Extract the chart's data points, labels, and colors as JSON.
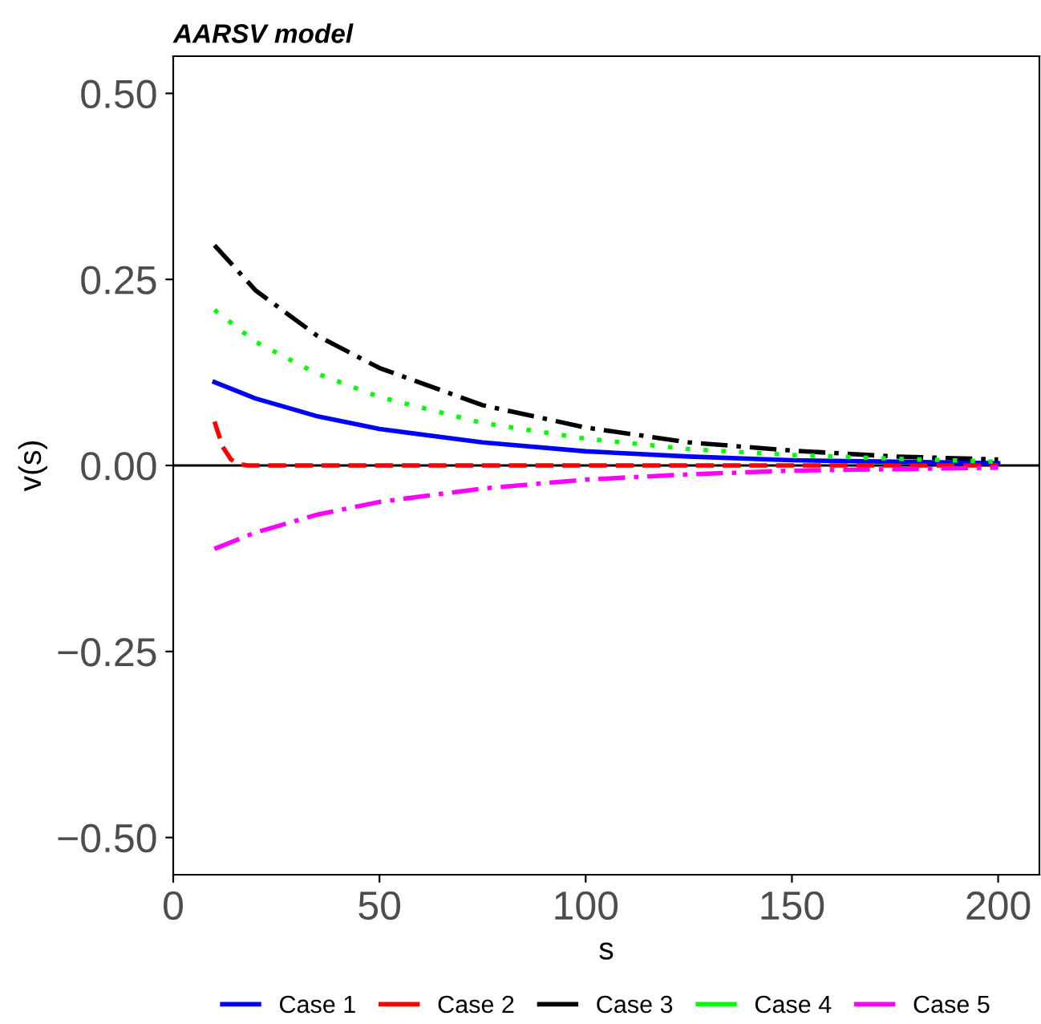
{
  "chart_data": {
    "type": "line",
    "title": "AARSV model",
    "xlabel": "s",
    "ylabel": "v(s)",
    "xlim": [
      0,
      210
    ],
    "xticks": [
      0,
      50,
      100,
      150,
      200
    ],
    "ylim": [
      -0.55,
      0.55
    ],
    "yticks": [
      {
        "value": -0.5,
        "label": "−0.50"
      },
      {
        "value": -0.25,
        "label": "−0.25"
      },
      {
        "value": 0,
        "label": "0.00"
      },
      {
        "value": 0.25,
        "label": "0.25"
      },
      {
        "value": 0.5,
        "label": "0.50"
      }
    ],
    "grid": false,
    "legend": "bottom",
    "ref_lines": [
      {
        "axis": "y",
        "value": 0,
        "color": "#000000",
        "line_style": "solid"
      }
    ],
    "series": [
      {
        "name": "Case 1",
        "color": "#0000ff",
        "line_style": "solid",
        "x": [
          10,
          20,
          35,
          50,
          75,
          100,
          125,
          150,
          175,
          200
        ],
        "values": [
          0.112,
          0.09,
          0.066,
          0.049,
          0.031,
          0.019,
          0.012,
          0.007,
          0.005,
          0.003
        ]
      },
      {
        "name": "Case 2",
        "color": "#ff0000",
        "line_style": "dashed",
        "x": [
          10,
          12,
          14,
          16,
          18,
          200
        ],
        "values": [
          0.059,
          0.025,
          0.008,
          0.002,
          0,
          0
        ]
      },
      {
        "name": "Case 3",
        "color": "#000000",
        "line_style": "dashdot",
        "x": [
          10,
          20,
          35,
          50,
          75,
          100,
          125,
          150,
          175,
          200
        ],
        "values": [
          0.296,
          0.235,
          0.174,
          0.131,
          0.081,
          0.051,
          0.031,
          0.02,
          0.012,
          0.008
        ]
      },
      {
        "name": "Case 4",
        "color": "#00ff00",
        "line_style": "dotted",
        "x": [
          10,
          20,
          35,
          50,
          75,
          100,
          125,
          150,
          175,
          200
        ],
        "values": [
          0.209,
          0.166,
          0.123,
          0.092,
          0.057,
          0.036,
          0.022,
          0.014,
          0.009,
          0.005
        ]
      },
      {
        "name": "Case 5",
        "color": "#ff00ff",
        "line_style": "dashdot",
        "x": [
          10,
          20,
          35,
          50,
          75,
          100,
          125,
          150,
          175,
          200
        ],
        "values": [
          -0.112,
          -0.09,
          -0.066,
          -0.049,
          -0.031,
          -0.019,
          -0.012,
          -0.007,
          -0.005,
          -0.003
        ]
      }
    ]
  }
}
